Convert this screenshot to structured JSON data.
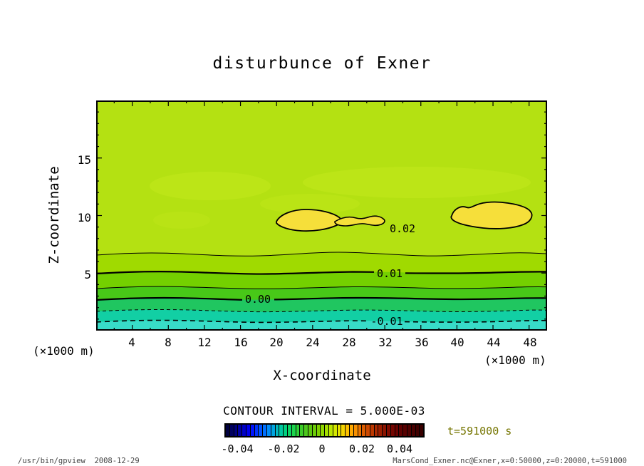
{
  "title": "disturbunce of Exner",
  "axes": {
    "x": {
      "label": "X-coordinate",
      "unit_left": "(×1000 m)",
      "unit_right": "(×1000 m)",
      "ticks": [
        "4",
        "8",
        "12",
        "16",
        "20",
        "24",
        "28",
        "32",
        "36",
        "40",
        "44",
        "48"
      ]
    },
    "y": {
      "label": "Z-coordinate",
      "ticks": [
        "15",
        "10",
        "5"
      ]
    }
  },
  "contour_labels": {
    "p002": "0.02",
    "p001": "0.01",
    "p000": "0.00",
    "m001": "-0.01"
  },
  "caption": "CONTOUR INTERVAL = 5.000E-03",
  "time_label": "t=591000 s",
  "colorbar": {
    "labels": [
      "-0.04",
      "-0.02",
      "0",
      "0.02",
      "0.04"
    ],
    "colors": [
      "#000040",
      "#000060",
      "#000080",
      "#0000a4",
      "#0000c8",
      "#0000ec",
      "#0014ff",
      "#0034ff",
      "#0054ff",
      "#0070ff",
      "#008cf8",
      "#00a4e0",
      "#00b8c0",
      "#00c8a0",
      "#00d080",
      "#0cd464",
      "#1cd44c",
      "#2cd038",
      "#3ccc28",
      "#4cc81c",
      "#5cc810",
      "#6ccc08",
      "#7cd000",
      "#90d800",
      "#a4e000",
      "#bce600",
      "#d4e800",
      "#e8e400",
      "#f4d400",
      "#fcc000",
      "#ffa800",
      "#f89000",
      "#ec7400",
      "#dc5c00",
      "#cc4800",
      "#bc3800",
      "#ac2a00",
      "#9c1e00",
      "#8c1400",
      "#800c00",
      "#740600",
      "#6a0200",
      "#600000",
      "#580000",
      "#500000",
      "#480000",
      "#400000",
      "#380000"
    ]
  },
  "footer": {
    "left": "/usr/bin/gpview  2008-12-29",
    "right": "MarsCond_Exner.nc@Exner,x=0:50000,z=0:20000,t=591000"
  },
  "colors": {
    "bands": {
      "b020": "#b4e112",
      "b015": "#a0da00",
      "b010": "#74d000",
      "b005": "#48c818",
      "b000": "#20c660",
      "bm005": "#12cfa4",
      "bm010": "#38dcc8"
    },
    "high_fill": "#f6df3a",
    "patch": "#c6ea1e",
    "contour_line": "#000000",
    "time_label_color": "#757500"
  },
  "chart_data": {
    "type": "heatmap",
    "subtype": "filled_contour",
    "title": "disturbunce of Exner",
    "xlabel": "X-coordinate (×1000 m)",
    "ylabel": "Z-coordinate (×1000 m)",
    "xlim": [
      0,
      50
    ],
    "ylim": [
      0,
      20
    ],
    "x_ticks_major": [
      4,
      8,
      12,
      16,
      20,
      24,
      28,
      32,
      36,
      40,
      44,
      48
    ],
    "x_ticks_minor_step": 2,
    "y_ticks_major": [
      5,
      10,
      15
    ],
    "y_ticks_minor_step": 1,
    "contour_interval": 0.005,
    "contour_levels_visible": [
      -0.01,
      -0.005,
      0.0,
      0.005,
      0.01,
      0.015,
      0.02
    ],
    "negative_levels_style": "dashed",
    "labeled_contours": [
      {
        "level": 0.02,
        "label": "0.02",
        "at_x": 32,
        "at_z": 8.8,
        "shape": "closed maxima near z=9.5 spanning x=20-33 and x=39.5-48.5"
      },
      {
        "level": 0.01,
        "label": "0.01",
        "mean_z": 5.0
      },
      {
        "level": 0.0,
        "label": "0.00",
        "mean_z": 2.8
      },
      {
        "level": -0.01,
        "label": "-0.01",
        "mean_z": 0.9
      }
    ],
    "approx_level_heights_z": {
      "p0015": 6.6,
      "p0010": 5.0,
      "p0005": 3.7,
      "p0000": 2.8,
      "m0005": 1.7,
      "m0010": 0.9
    },
    "field_description": "Exner function disturbance, nearly horizontally uniform; ~0.02 maxima aloft (z=8-11, yellow) decreasing to ~-0.012 near the surface (turquoise)",
    "colorbar_tick_values": [
      -0.04,
      -0.02,
      0,
      0.02,
      0.04
    ],
    "grid": false,
    "legend_position": "bottom-colorbar",
    "time_seconds": 591000
  }
}
